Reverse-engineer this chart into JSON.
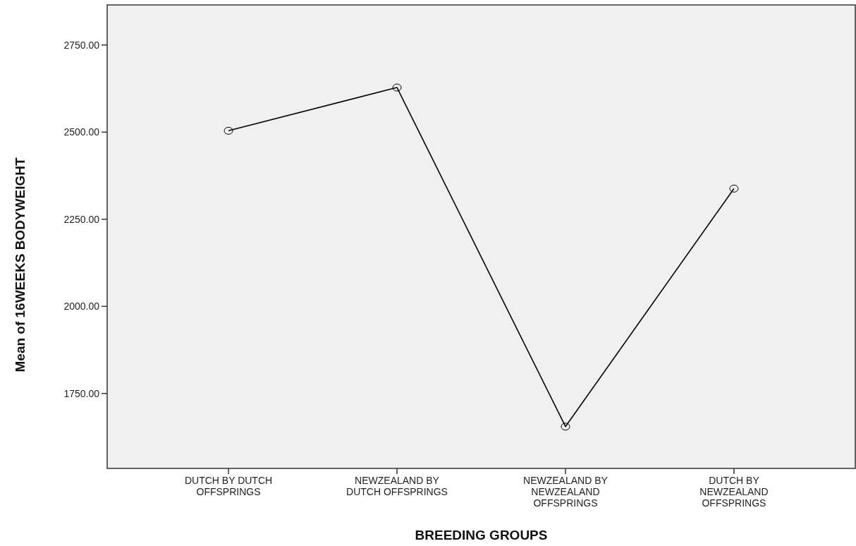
{
  "chart_data": {
    "type": "line",
    "xlabel": "BREEDING GROUPS",
    "ylabel": "Mean of 16WEEKS BODYWEIGHT",
    "categories": [
      "DUTCH BY DUTCH OFFSPRINGS",
      "NEWZEALAND BY DUTCH OFFSPRINGS",
      "NEWZEALAND BY NEWZEALAND OFFSPRINGS",
      "DUTCH BY NEWZEALAND OFFSPRINGS"
    ],
    "series": [
      {
        "color": "#000000",
        "values": [
          2504,
          2628,
          1655,
          2338
        ]
      }
    ],
    "ylim": [
      1535,
      2865
    ],
    "yticks": [
      {
        "value": 1750,
        "label": "1750.00"
      },
      {
        "value": 2000,
        "label": "2000.00"
      },
      {
        "value": 2250,
        "label": "2250.00"
      },
      {
        "value": 2500,
        "label": "2500.00"
      },
      {
        "value": 2750,
        "label": "2750.00"
      }
    ],
    "grid": false,
    "marker": "circle",
    "line_style": "solid"
  }
}
